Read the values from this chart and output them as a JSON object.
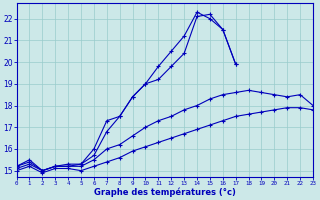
{
  "xlabel": "Graphe des températures (°c)",
  "background_color": "#cce8e8",
  "line_color": "#0000bb",
  "grid_color": "#99cccc",
  "xlim": [
    0,
    23
  ],
  "ylim": [
    14.7,
    22.7
  ],
  "x_ticks": [
    0,
    1,
    2,
    3,
    4,
    5,
    6,
    7,
    8,
    9,
    10,
    11,
    12,
    13,
    14,
    15,
    16,
    17,
    18,
    19,
    20,
    21,
    22,
    23
  ],
  "y_ticks": [
    15,
    16,
    17,
    18,
    19,
    20,
    21,
    22
  ],
  "series": [
    {
      "x": [
        0,
        1,
        2,
        3,
        4,
        5,
        6,
        7,
        8,
        9,
        10,
        11,
        12,
        13,
        14,
        15,
        16,
        17
      ],
      "y": [
        15.2,
        15.5,
        15.0,
        15.2,
        15.3,
        15.3,
        15.7,
        16.8,
        17.5,
        18.4,
        19.0,
        19.8,
        20.5,
        21.2,
        22.3,
        22.0,
        21.5,
        19.9
      ]
    },
    {
      "x": [
        0,
        1,
        2,
        3,
        4,
        5,
        6,
        7,
        8,
        9,
        10,
        11,
        12,
        13,
        14,
        15,
        16,
        17
      ],
      "y": [
        15.2,
        15.4,
        15.0,
        15.2,
        15.2,
        15.3,
        16.0,
        17.3,
        17.5,
        18.4,
        19.0,
        19.2,
        19.8,
        20.4,
        22.1,
        22.2,
        21.5,
        19.9
      ]
    },
    {
      "x": [
        0,
        1,
        2,
        3,
        4,
        5,
        6,
        7,
        8,
        9,
        10,
        11,
        12,
        13,
        14,
        15,
        16,
        17,
        18,
        19,
        20,
        21,
        22,
        23
      ],
      "y": [
        15.1,
        15.3,
        15.0,
        15.2,
        15.2,
        15.2,
        15.5,
        16.0,
        16.2,
        16.6,
        17.0,
        17.3,
        17.5,
        17.8,
        18.0,
        18.3,
        18.5,
        18.6,
        18.7,
        18.6,
        18.5,
        18.4,
        18.5,
        18.0
      ]
    },
    {
      "x": [
        0,
        1,
        2,
        3,
        4,
        5,
        6,
        7,
        8,
        9,
        10,
        11,
        12,
        13,
        14,
        15,
        16,
        17,
        18,
        19,
        20,
        21,
        22,
        23
      ],
      "y": [
        15.0,
        15.2,
        14.9,
        15.1,
        15.1,
        15.0,
        15.2,
        15.4,
        15.6,
        15.9,
        16.1,
        16.3,
        16.5,
        16.7,
        16.9,
        17.1,
        17.3,
        17.5,
        17.6,
        17.7,
        17.8,
        17.9,
        17.9,
        17.8
      ]
    }
  ]
}
